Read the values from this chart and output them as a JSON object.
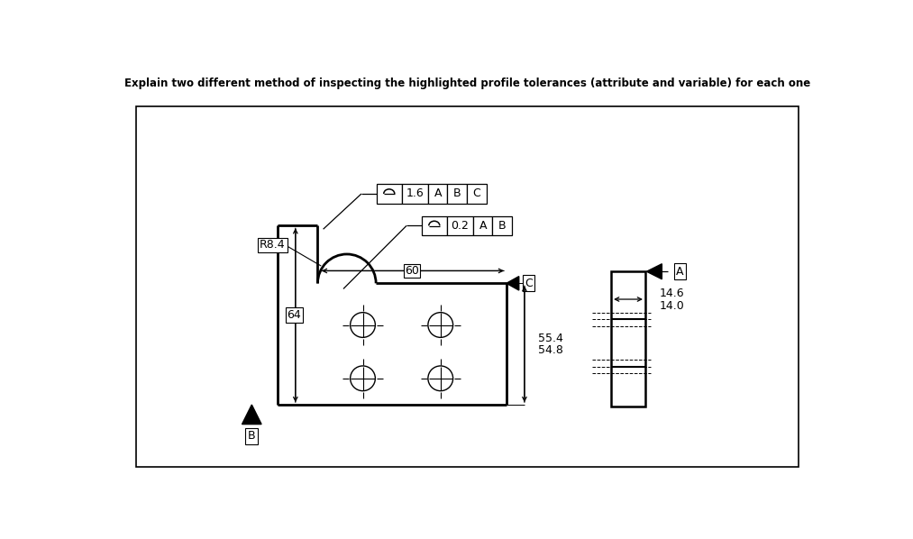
{
  "title": "Explain two different method of inspecting the highlighted profile tolerances (attribute and variable) for each one",
  "title_fontsize": 8.5,
  "bg_color": "#ffffff",
  "border_color": "#000000",
  "line_color": "#000000",
  "fig_width": 10.13,
  "fig_height": 5.98,
  "dpi": 100,
  "label_R8": "R8.4",
  "label_60": "60",
  "label_64": "64",
  "label_B": "B",
  "label_C": "C",
  "label_A": "A",
  "label_55_4": "55.4",
  "label_54_8": "54.8",
  "label_14_6": "14.6",
  "label_14_0": "14.0",
  "tol1_value": "1.6",
  "tol1_refs": [
    "A",
    "B",
    "C"
  ],
  "tol2_value": "0.2",
  "tol2_refs": [
    "A",
    "B"
  ]
}
